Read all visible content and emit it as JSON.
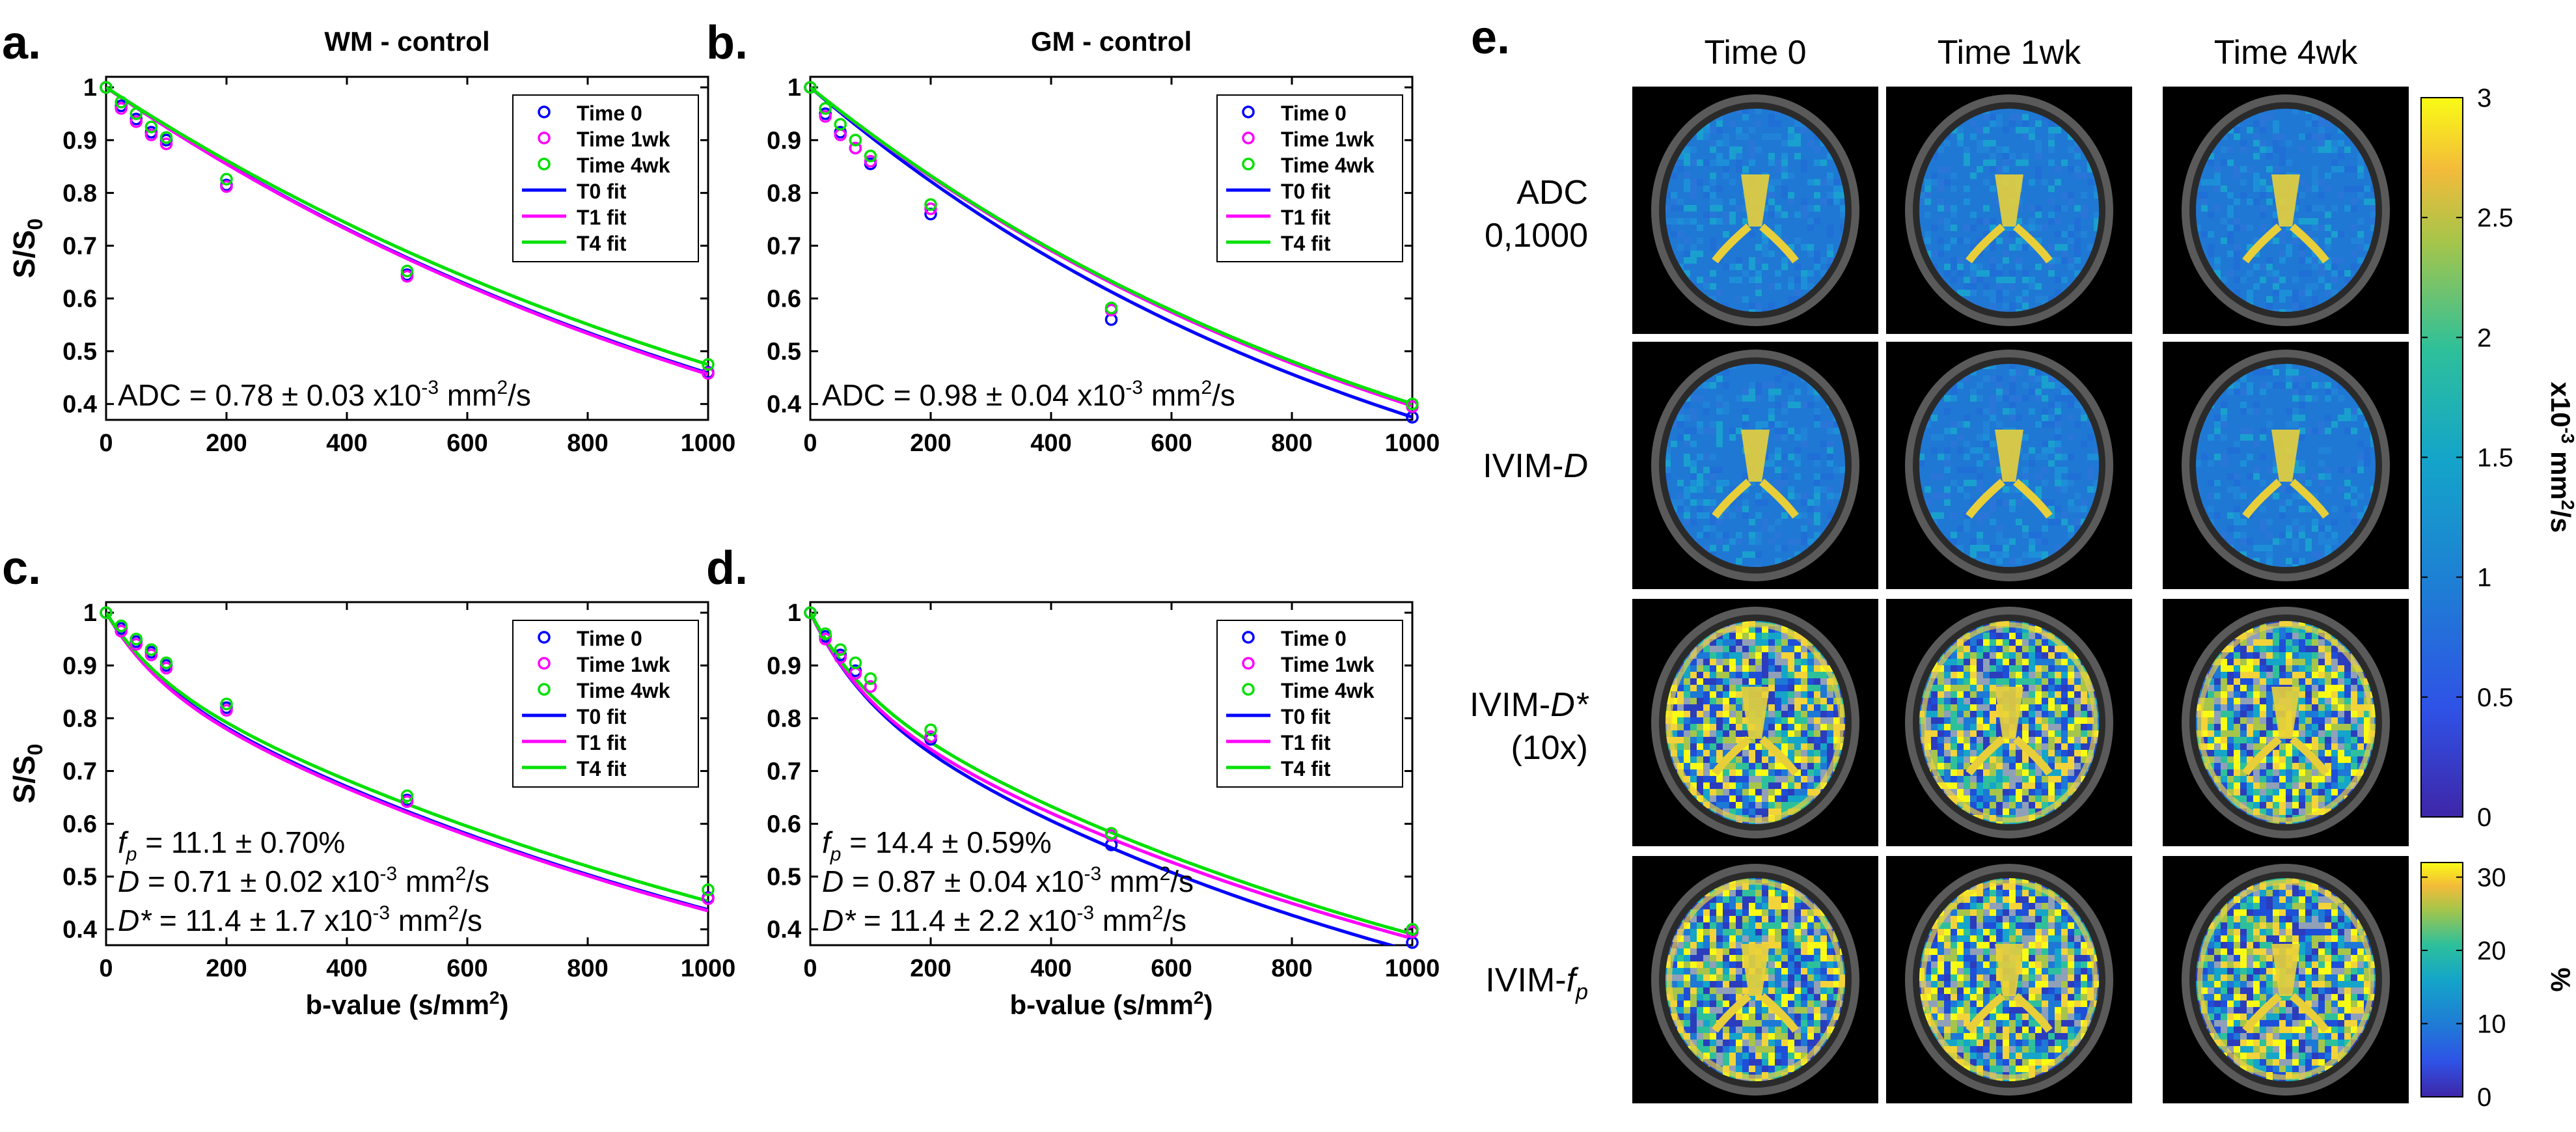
{
  "panel_labels": [
    "a.",
    "b.",
    "c.",
    "d.",
    "e."
  ],
  "colors": {
    "time0": "#0000ff",
    "time1": "#ff00ff",
    "time4": "#00e000",
    "cbar_low": "#3e26a8",
    "cbar_mid": "#14a5c9",
    "cbar_high": "#f9fb15"
  },
  "chart_data": [
    {
      "type": "line",
      "panel": "a.",
      "title": "WM - control",
      "xlabel": "",
      "ylabel": "S/S0",
      "xlim": [
        0,
        1000
      ],
      "ylim": [
        0.37,
        1.02
      ],
      "xticks": [
        0,
        200,
        400,
        600,
        800,
        1000
      ],
      "yticks": [
        0.4,
        0.5,
        0.6,
        0.7,
        0.8,
        0.9,
        1
      ],
      "legend": [
        "Time 0",
        "Time 1wk",
        "Time 4wk",
        "T0 fit",
        "T1 fit",
        "T4 fit"
      ],
      "legend_position": "top-right",
      "b_values": [
        0,
        25,
        50,
        75,
        100,
        200,
        500,
        1000
      ],
      "series": [
        {
          "name": "Time 0",
          "kind": "points",
          "values": [
            1.0,
            0.965,
            0.94,
            0.915,
            0.9,
            0.815,
            0.645,
            0.46
          ]
        },
        {
          "name": "Time 1wk",
          "kind": "points",
          "values": [
            1.0,
            0.96,
            0.935,
            0.91,
            0.893,
            0.812,
            0.642,
            0.458
          ]
        },
        {
          "name": "Time 4wk",
          "kind": "points",
          "values": [
            1.0,
            0.972,
            0.95,
            0.925,
            0.905,
            0.826,
            0.652,
            0.475
          ]
        },
        {
          "name": "T0 fit",
          "kind": "adc",
          "adc": 0.78
        },
        {
          "name": "T1 fit",
          "kind": "adc",
          "adc": 0.785
        },
        {
          "name": "T4 fit",
          "kind": "adc",
          "adc": 0.745
        }
      ],
      "annotations": [
        {
          "kind": "adc",
          "base": "ADC = 0.78 ± 0.03 x10",
          "exp": "-3",
          "tail": " mm",
          "unit_exp": "2",
          "end": "/s"
        }
      ]
    },
    {
      "type": "line",
      "panel": "b.",
      "title": "GM - control",
      "xlabel": "",
      "ylabel": "",
      "xlim": [
        0,
        1000
      ],
      "ylim": [
        0.37,
        1.02
      ],
      "xticks": [
        0,
        200,
        400,
        600,
        800,
        1000
      ],
      "yticks": [
        0.4,
        0.5,
        0.6,
        0.7,
        0.8,
        0.9,
        1
      ],
      "legend": [
        "Time 0",
        "Time 1wk",
        "Time 4wk",
        "T0 fit",
        "T1 fit",
        "T4 fit"
      ],
      "legend_position": "top-right",
      "b_values": [
        0,
        25,
        50,
        75,
        100,
        200,
        500,
        1000
      ],
      "series": [
        {
          "name": "Time 0",
          "kind": "points",
          "values": [
            1.0,
            0.95,
            0.915,
            0.885,
            0.855,
            0.76,
            0.56,
            0.375
          ]
        },
        {
          "name": "Time 1wk",
          "kind": "points",
          "values": [
            1.0,
            0.945,
            0.91,
            0.885,
            0.86,
            0.77,
            0.578,
            0.395
          ]
        },
        {
          "name": "Time 4wk",
          "kind": "points",
          "values": [
            1.0,
            0.96,
            0.93,
            0.9,
            0.87,
            0.778,
            0.582,
            0.4
          ]
        },
        {
          "name": "T0 fit",
          "kind": "adc",
          "adc": 0.98
        },
        {
          "name": "T1 fit",
          "kind": "adc",
          "adc": 0.925
        },
        {
          "name": "T4 fit",
          "kind": "adc",
          "adc": 0.915
        }
      ],
      "annotations": [
        {
          "kind": "adc",
          "base": "ADC = 0.98 ± 0.04 x10",
          "exp": "-3",
          "tail": " mm",
          "unit_exp": "2",
          "end": "/s"
        }
      ]
    },
    {
      "type": "line",
      "panel": "c.",
      "title": "",
      "xlabel": "b-value (s/mm2)",
      "ylabel": "S/S0",
      "xlim": [
        0,
        1000
      ],
      "ylim": [
        0.37,
        1.02
      ],
      "xticks": [
        0,
        200,
        400,
        600,
        800,
        1000
      ],
      "yticks": [
        0.4,
        0.5,
        0.6,
        0.7,
        0.8,
        0.9,
        1
      ],
      "legend": [
        "Time 0",
        "Time 1wk",
        "Time 4wk",
        "T0 fit",
        "T1 fit",
        "T4 fit"
      ],
      "legend_position": "top-right",
      "b_values": [
        0,
        25,
        50,
        75,
        100,
        200,
        500,
        1000
      ],
      "series": [
        {
          "name": "Time 0",
          "kind": "points",
          "values": [
            1.0,
            0.97,
            0.945,
            0.925,
            0.9,
            0.82,
            0.645,
            0.46
          ]
        },
        {
          "name": "Time 1wk",
          "kind": "points",
          "values": [
            1.0,
            0.965,
            0.94,
            0.92,
            0.895,
            0.815,
            0.642,
            0.458
          ]
        },
        {
          "name": "Time 4wk",
          "kind": "points",
          "values": [
            1.0,
            0.975,
            0.95,
            0.93,
            0.905,
            0.827,
            0.653,
            0.475
          ]
        },
        {
          "name": "T0 fit",
          "kind": "ivim",
          "f": 0.111,
          "D": 0.71,
          "Dstar": 11.4
        },
        {
          "name": "T1 fit",
          "kind": "ivim",
          "f": 0.115,
          "D": 0.71,
          "Dstar": 11.4
        },
        {
          "name": "T4 fit",
          "kind": "ivim",
          "f": 0.105,
          "D": 0.68,
          "Dstar": 11.4
        }
      ],
      "annotations": [
        {
          "kind": "fp",
          "sym": "f",
          "sub": "p",
          "text": " = 11.1 ± 0.70%"
        },
        {
          "kind": "d",
          "sym": "D",
          "base": " = 0.71 ± 0.02 x10",
          "exp": "-3",
          "tail": " mm",
          "unit_exp": "2",
          "end": "/s"
        },
        {
          "kind": "d",
          "sym": "D*",
          "base": " = 11.4 ± 1.7 x10",
          "exp": "-3",
          "tail": " mm",
          "unit_exp": "2",
          "end": "/s"
        }
      ]
    },
    {
      "type": "line",
      "panel": "d.",
      "title": "",
      "xlabel": "b-value (s/mm2)",
      "ylabel": "",
      "xlim": [
        0,
        1000
      ],
      "ylim": [
        0.37,
        1.02
      ],
      "xticks": [
        0,
        200,
        400,
        600,
        800,
        1000
      ],
      "yticks": [
        0.4,
        0.5,
        0.6,
        0.7,
        0.8,
        0.9,
        1
      ],
      "legend": [
        "Time 0",
        "Time 1wk",
        "Time 4wk",
        "T0 fit",
        "T1 fit",
        "T4 fit"
      ],
      "legend_position": "top-right",
      "b_values": [
        0,
        25,
        50,
        75,
        100,
        200,
        500,
        1000
      ],
      "series": [
        {
          "name": "Time 0",
          "kind": "points",
          "values": [
            1.0,
            0.955,
            0.92,
            0.89,
            0.86,
            0.76,
            0.56,
            0.375
          ]
        },
        {
          "name": "Time 1wk",
          "kind": "points",
          "values": [
            1.0,
            0.95,
            0.915,
            0.885,
            0.86,
            0.765,
            0.578,
            0.395
          ]
        },
        {
          "name": "Time 4wk",
          "kind": "points",
          "values": [
            1.0,
            0.96,
            0.93,
            0.905,
            0.875,
            0.778,
            0.582,
            0.4
          ]
        },
        {
          "name": "T0 fit",
          "kind": "ivim",
          "f": 0.144,
          "D": 0.87,
          "Dstar": 11.4
        },
        {
          "name": "T1 fit",
          "kind": "ivim",
          "f": 0.148,
          "D": 0.8,
          "Dstar": 11.4
        },
        {
          "name": "T4 fit",
          "kind": "ivim",
          "f": 0.13,
          "D": 0.8,
          "Dstar": 11.4
        }
      ],
      "annotations": [
        {
          "kind": "fp",
          "sym": "f",
          "sub": "p",
          "text": " = 14.4 ± 0.59%"
        },
        {
          "kind": "d",
          "sym": "D",
          "base": " = 0.87 ± 0.04 x10",
          "exp": "-3",
          "tail": " mm",
          "unit_exp": "2",
          "end": "/s"
        },
        {
          "kind": "d",
          "sym": "D*",
          "base": " = 11.4 ± 2.2 x10",
          "exp": "-3",
          "tail": " mm",
          "unit_exp": "2",
          "end": "/s"
        }
      ]
    },
    {
      "type": "heatmap",
      "panel": "e.",
      "columns": [
        "Time 0",
        "Time 1wk",
        "Time 4wk"
      ],
      "rows": [
        {
          "label_lines": [
            "ADC",
            "0,1000"
          ],
          "italic": "",
          "sub": "",
          "suffix_line": "",
          "style": "smooth"
        },
        {
          "label_lines": [
            "IVIM-"
          ],
          "italic": "D",
          "sub": "",
          "suffix_line": "",
          "style": "smooth"
        },
        {
          "label_lines": [
            "IVIM-"
          ],
          "italic": "D*",
          "sub": "",
          "suffix_line": "(10x)",
          "style": "noisy"
        },
        {
          "label_lines": [
            "IVIM-"
          ],
          "italic": "f",
          "sub": "p",
          "suffix_line": "",
          "style": "noisy"
        }
      ],
      "colorbars": [
        {
          "ticks": [
            "0",
            "0.5",
            "1",
            "1.5",
            "2",
            "2.5",
            "3"
          ],
          "min": 0,
          "max": 3,
          "label": "x10",
          "label_exp": "-3",
          "label_tail": " mm",
          "label_tail_exp": "2",
          "label_end": "/s"
        },
        {
          "ticks": [
            "0",
            "10",
            "20",
            "30"
          ],
          "min": 0,
          "max": 32,
          "label": "%",
          "label_exp": "",
          "label_tail": "",
          "label_tail_exp": "",
          "label_end": ""
        }
      ]
    }
  ]
}
